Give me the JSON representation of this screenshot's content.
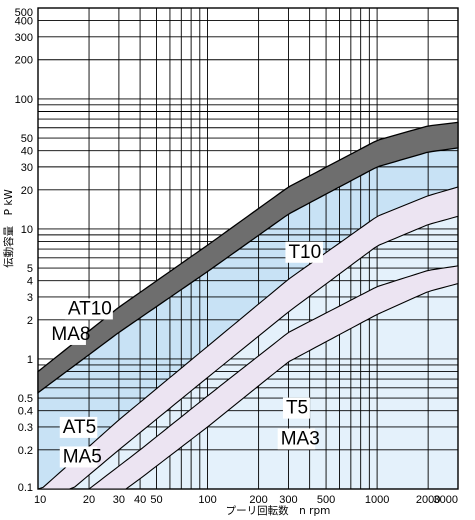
{
  "chart_data": {
    "type": "area",
    "x_scale": "log",
    "y_scale": "log",
    "xlim": [
      10,
      3000
    ],
    "ylim": [
      0.1,
      500
    ],
    "xlabel": "プーリ回転数　n rpm",
    "ylabel": "伝動容量　P kW",
    "x_ticks": [
      "10",
      "20",
      "30",
      "40",
      "50",
      "100",
      "200",
      "300",
      "500",
      "1000",
      "2000",
      "3000"
    ],
    "y_ticks": [
      "0.1",
      "0.2",
      "0.3",
      "0.4",
      "0.5",
      "1",
      "2",
      "3",
      "4",
      "5",
      "10",
      "20",
      "30",
      "40",
      "50",
      "100",
      "200",
      "300",
      "400",
      "500"
    ],
    "grid": true,
    "bands": [
      {
        "id": "at10",
        "names": [
          "AT10",
          "MA8"
        ],
        "x": [
          10,
          30,
          100,
          300,
          1000,
          2000,
          3000
        ],
        "upper": [
          0.8,
          2.5,
          7.5,
          21,
          48,
          62,
          66
        ],
        "lower": [
          0.55,
          1.6,
          4.7,
          13,
          30,
          39,
          42
        ],
        "color": "#6e6e6e"
      },
      {
        "id": "t5",
        "names": [
          "AT5",
          "MA5"
        ],
        "x": [
          10,
          30,
          100,
          300,
          1000,
          2000,
          3000
        ],
        "upper": [
          0.095,
          0.34,
          1.25,
          4.1,
          12.5,
          18,
          21
        ],
        "lower": [
          0.06,
          0.2,
          0.72,
          2.3,
          7.4,
          10.8,
          12.5
        ],
        "color": "#ece4f2"
      },
      {
        "id": "t5-narrow",
        "names": [
          "T5",
          "MA3"
        ],
        "x": [
          20,
          40,
          100,
          300,
          1000,
          2000,
          3000
        ],
        "upper": [
          0.1,
          0.2,
          0.52,
          1.6,
          3.6,
          4.8,
          5.2
        ],
        "lower": [
          0.062,
          0.12,
          0.3,
          0.95,
          2.2,
          3.3,
          3.8
        ],
        "color": "#ece4f2"
      }
    ],
    "region_labels": [
      {
        "id": "t10",
        "text": "T10",
        "x": 300,
        "y": 6
      },
      {
        "id": "at10",
        "text": "AT10",
        "x": 15,
        "y": 2.2
      },
      {
        "id": "ma8",
        "text": "MA8",
        "x": 12,
        "y": 1.4
      },
      {
        "id": "at5",
        "text": "AT5",
        "x": 14,
        "y": 0.27
      },
      {
        "id": "ma5",
        "text": "MA5",
        "x": 14,
        "y": 0.16
      },
      {
        "id": "t5",
        "text": "T5",
        "x": 290,
        "y": 0.38
      },
      {
        "id": "ma3",
        "text": "MA3",
        "x": 270,
        "y": 0.22
      }
    ],
    "colors": {
      "region_main": "#c8e2f5",
      "region_lower": "#e4f1fb",
      "gray_band": "#6e6e6e",
      "light_band": "#ece4f2",
      "grid": "#000000"
    }
  }
}
